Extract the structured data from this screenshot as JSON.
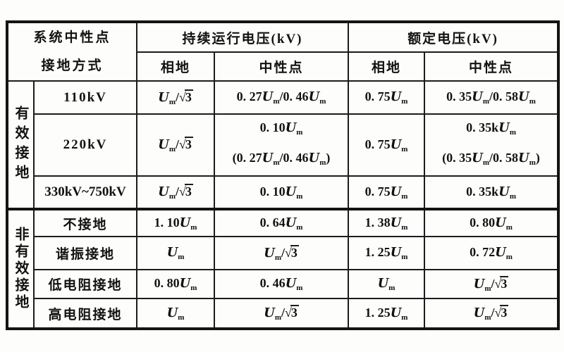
{
  "table": {
    "header": {
      "col1_line1": "系统中性点",
      "col1_line2": "接地方式",
      "group_continuous": "持续运行电压(kV)",
      "group_rated": "额定电压(kV)",
      "sub_phase_ground_1": "相地",
      "sub_neutral_1": "中性点",
      "sub_phase_ground_2": "相地",
      "sub_neutral_2": "中性点"
    },
    "sections": [
      {
        "label": "有效接地",
        "rows": [
          {
            "category": "110kV",
            "cells": [
              "Um/√3",
              "0. 27Um/0. 46Um",
              "0. 75Um",
              "0. 35Um/0. 58Um"
            ]
          },
          {
            "category": "220kV",
            "cells": [
              "Um/√3",
              [
                "0. 10Um",
                "(0. 27Um/0. 46Um)"
              ],
              "0. 75Um",
              [
                "0. 35kUm",
                "(0. 35Um/0. 58Um)"
              ]
            ]
          },
          {
            "category": "330kV~750kV",
            "cells": [
              "Um/√3",
              "0. 10Um",
              "0. 75Um",
              "0. 35kUm"
            ]
          }
        ]
      },
      {
        "label": "非有效接地",
        "rows": [
          {
            "category": "不接地",
            "cells": [
              "1. 10Um",
              "0. 64Um",
              "1. 38Um",
              "0. 80Um"
            ]
          },
          {
            "category": "谐振接地",
            "cells": [
              "Um",
              "Um/√3",
              "1. 25Um",
              "0. 72Um"
            ]
          },
          {
            "category": "低电阻接地",
            "cells": [
              "0. 80Um",
              "0. 46Um",
              "Um",
              "Um/√3"
            ]
          },
          {
            "category": "高电阻接地",
            "cells": [
              "Um",
              "Um/√3",
              "1. 25Um",
              "Um/√3"
            ]
          }
        ]
      }
    ]
  }
}
